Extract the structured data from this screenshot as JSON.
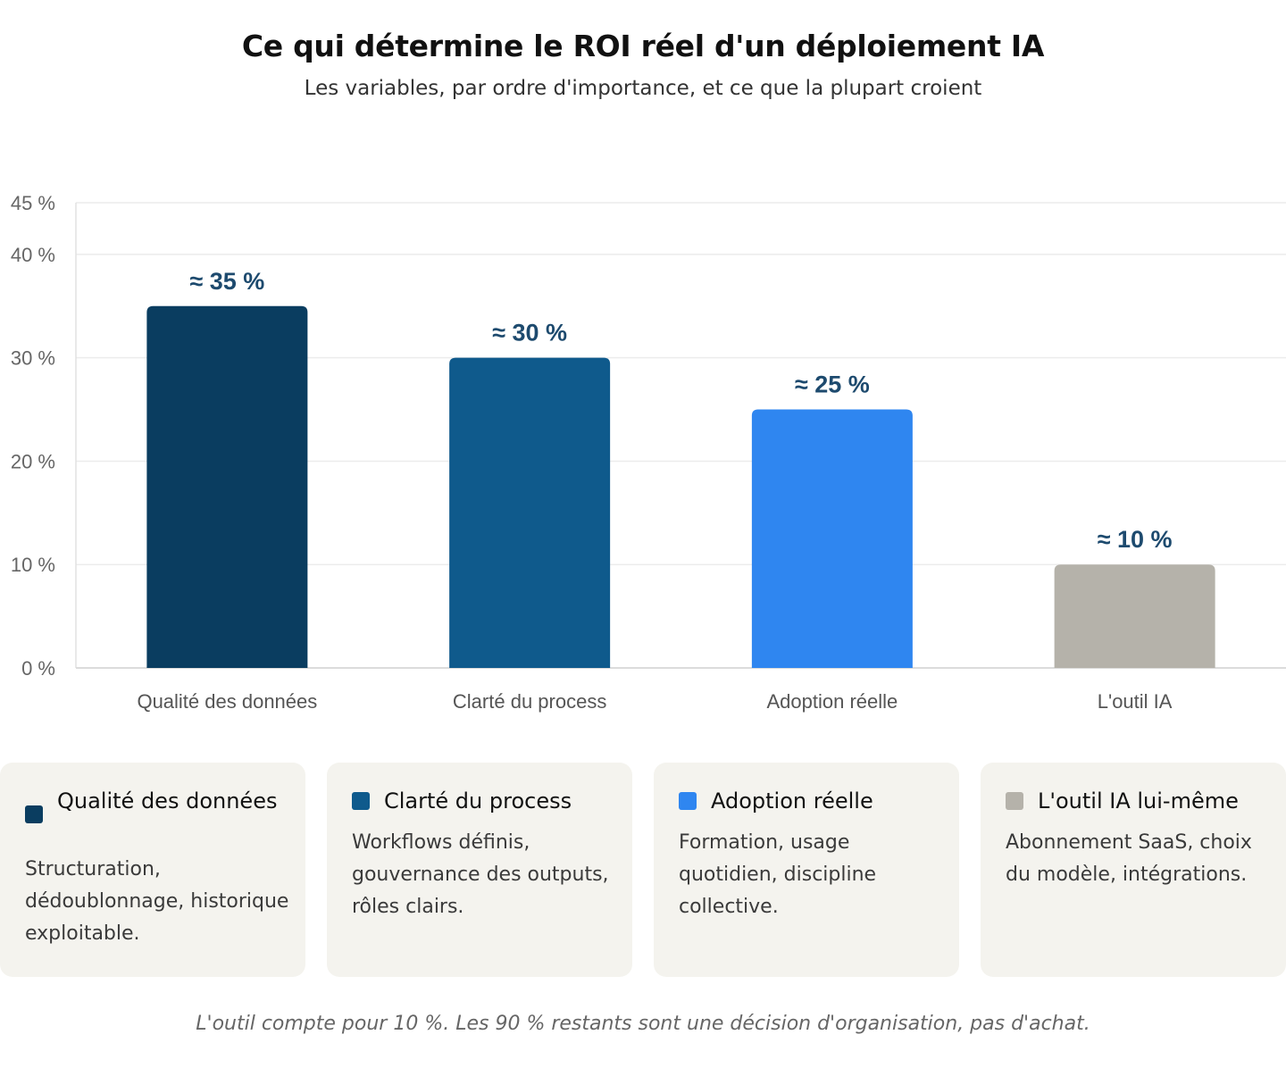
{
  "header": {
    "title": "Ce qui détermine le ROI réel d'un déploiement IA",
    "subtitle": "Les variables, par ordre d'importance, et ce que la plupart croient"
  },
  "chart_data": {
    "type": "bar",
    "categories": [
      "Qualité des données",
      "Clarté du process",
      "Adoption réelle",
      "L'outil IA"
    ],
    "values": [
      35,
      30,
      25,
      10
    ],
    "data_labels": [
      "≈ 35 %",
      "≈ 30 %",
      "≈ 25 %",
      "≈ 10 %"
    ],
    "colors": [
      "#0a3d60",
      "#0f5a8c",
      "#2f86f0",
      "#b5b2aa"
    ],
    "ylim": [
      0,
      45
    ],
    "yticks": [
      0,
      10,
      20,
      30,
      40,
      45
    ],
    "ytick_labels": [
      "0 %",
      "10 %",
      "20 %",
      "30 %",
      "40 %",
      "45 %"
    ],
    "grid": true,
    "legend": "none",
    "xlabel": "",
    "ylabel": ""
  },
  "cards": [
    {
      "title": "Qualité des données",
      "color": "#0a3d60",
      "text": "Structuration, dédoublonnage, historique exploitable."
    },
    {
      "title": "Clarté du process",
      "color": "#0f5a8c",
      "text": "Workflows définis, gouvernance des outputs, rôles clairs."
    },
    {
      "title": "Adoption réelle",
      "color": "#2f86f0",
      "text": "Formation, usage quotidien, discipline collective."
    },
    {
      "title": "L'outil IA lui-même",
      "color": "#b5b2aa",
      "text": "Abonnement SaaS, choix du modèle, intégrations."
    }
  ],
  "footer": {
    "note": "L'outil compte pour 10 %. Les 90 % restants sont une décision d'organisation, pas d'achat."
  }
}
